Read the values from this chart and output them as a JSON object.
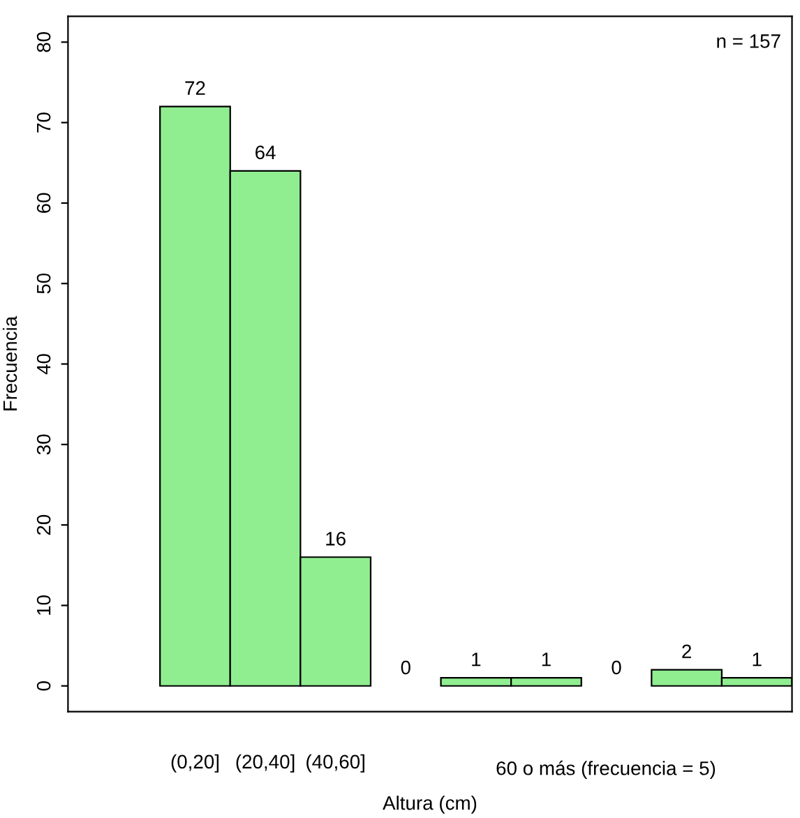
{
  "chart_data": {
    "type": "bar",
    "xlabel": "Altura (cm)",
    "ylabel": "Frecuencia",
    "categories": [
      "(0,20]",
      "(20,40]",
      "(40,60]",
      null,
      null,
      null,
      null,
      null,
      null
    ],
    "values": [
      72,
      64,
      16,
      0,
      1,
      1,
      0,
      2,
      1
    ],
    "color": "#90ee90",
    "ylim": [
      -3.2,
      83.2
    ],
    "yticks": [
      0,
      10,
      20,
      30,
      40,
      50,
      60,
      70,
      80
    ],
    "data_labels": true,
    "grid": false,
    "legend": false,
    "annotations": [
      "n = 157",
      "60 o más (frecuencia = 5)"
    ]
  }
}
